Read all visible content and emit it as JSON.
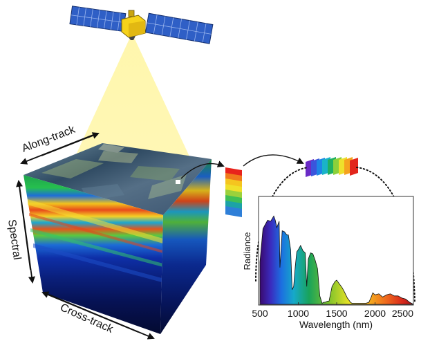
{
  "labels": {
    "along_track": "Along-track",
    "spectral": "Spectral",
    "cross_track": "Cross-track"
  },
  "chart_data": {
    "type": "area",
    "xlabel": "Wavelength (nm)",
    "ylabel": "Radiance",
    "xticks": [
      500,
      1000,
      1500,
      2000,
      2500
    ],
    "xlim": [
      500,
      2500
    ],
    "grid": false,
    "fill": "rainbow gradient by wavelength",
    "x": [
      500,
      540,
      600,
      640,
      680,
      700,
      720,
      750,
      760,
      790,
      820,
      850,
      870,
      900,
      920,
      940,
      960,
      980,
      1000,
      1030,
      1060,
      1090,
      1110,
      1130,
      1160,
      1190,
      1220,
      1250,
      1280,
      1310,
      1330,
      1350,
      1380,
      1400,
      1440,
      1480,
      1500,
      1530,
      1570,
      1600,
      1640,
      1680,
      1700,
      1720,
      1750,
      1800,
      1850,
      1880,
      1920,
      1950,
      1970,
      2000,
      2050,
      2100,
      2150,
      2200,
      2250,
      2300,
      2350,
      2400,
      2450,
      2500
    ],
    "y": [
      0.4,
      0.72,
      0.8,
      0.79,
      0.84,
      0.8,
      0.73,
      0.79,
      0.35,
      0.7,
      0.69,
      0.66,
      0.66,
      0.52,
      0.14,
      0.17,
      0.36,
      0.5,
      0.52,
      0.56,
      0.51,
      0.49,
      0.17,
      0.43,
      0.49,
      0.48,
      0.42,
      0.34,
      0.08,
      0.01,
      0.02,
      0.02,
      0.03,
      0.03,
      0.17,
      0.22,
      0.23,
      0.2,
      0.16,
      0.12,
      0.06,
      0.02,
      0.01,
      0.01,
      0.01,
      0.01,
      0.01,
      0.01,
      0.02,
      0.07,
      0.11,
      0.09,
      0.1,
      0.07,
      0.09,
      0.1,
      0.08,
      0.08,
      0.06,
      0.05,
      0.02,
      0.0
    ]
  },
  "colors": {
    "satellite_body": "#f6d21a",
    "solar_panel": "#2f5fc6",
    "scan_beam": "#fff7b0",
    "arrow": "#111111"
  }
}
